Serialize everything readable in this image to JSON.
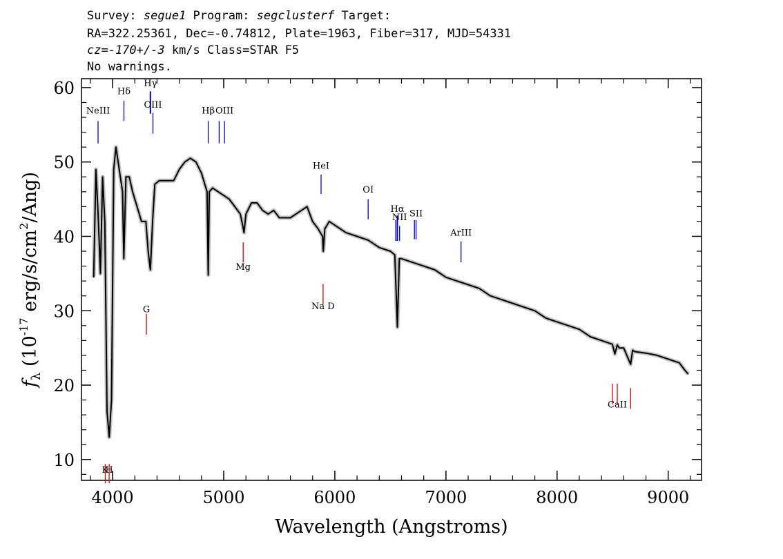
{
  "header": {
    "line1": [
      "Survey: ",
      "segue1",
      " Program: ",
      "segclusterf",
      " Target:"
    ],
    "line2": "RA=322.25361, Dec=-0.74812, Plate=1963, Fiber=317, MJD=54331",
    "line3": [
      "cz=-170+/-3",
      " km/s Class=STAR F5"
    ],
    "line4": "No warnings."
  },
  "chart_data": {
    "type": "line",
    "xlabel": "Wavelength (Angstroms)",
    "ylabel": {
      "f": "f",
      "sub": "λ",
      "pre": " (10",
      "sup": "-17",
      "mid": " erg/s/cm",
      "sup2": "2",
      "post": "/Ang)"
    },
    "xlim": [
      3720,
      9300
    ],
    "ylim": [
      7.2,
      61.2
    ],
    "xticks": [
      4000,
      5000,
      6000,
      7000,
      8000,
      9000
    ],
    "xtick_labels": [
      "4000",
      "5000",
      "6000",
      "7000",
      "8000",
      "9000"
    ],
    "yticks": [
      10,
      20,
      30,
      40,
      50,
      60
    ],
    "ytick_labels": [
      "10",
      "20",
      "30",
      "40",
      "50",
      "60"
    ],
    "colors": {
      "flux": "#000000",
      "error": "#bdbdbd",
      "emission": "#0000cc",
      "absorption": "#dd0000"
    },
    "spectrum": {
      "name": "flux",
      "x": [
        3830,
        3850,
        3870,
        3890,
        3910,
        3930,
        3950,
        3970,
        3990,
        4010,
        4030,
        4050,
        4070,
        4090,
        4101,
        4120,
        4150,
        4180,
        4220,
        4260,
        4300,
        4320,
        4340,
        4360,
        4380,
        4420,
        4480,
        4550,
        4600,
        4650,
        4700,
        4750,
        4800,
        4830,
        4850,
        4861,
        4870,
        4900,
        4950,
        5000,
        5050,
        5100,
        5150,
        5170,
        5183,
        5200,
        5250,
        5300,
        5350,
        5400,
        5450,
        5500,
        5600,
        5700,
        5750,
        5800,
        5850,
        5890,
        5896,
        5910,
        5950,
        6000,
        6100,
        6200,
        6300,
        6400,
        6500,
        6540,
        6563,
        6580,
        6600,
        6700,
        6800,
        6900,
        7000,
        7100,
        7200,
        7300,
        7400,
        7500,
        7600,
        7700,
        7800,
        7900,
        8000,
        8100,
        8200,
        8300,
        8400,
        8498,
        8520,
        8542,
        8560,
        8600,
        8662,
        8680,
        8700,
        8800,
        8900,
        9000,
        9100,
        9150,
        9180
      ],
      "y": [
        34.5,
        49,
        43,
        35,
        48,
        42,
        16.5,
        13,
        18,
        49,
        52,
        50,
        48,
        46,
        37,
        48,
        48,
        46,
        44,
        42,
        42,
        38,
        35.5,
        42,
        47,
        47.5,
        47.5,
        47.5,
        49,
        50,
        50.5,
        50,
        48.5,
        47,
        46,
        34.8,
        46,
        46.5,
        46,
        45.5,
        45,
        44,
        43,
        41.5,
        40.5,
        43,
        44.5,
        44.5,
        43.5,
        43,
        43.5,
        42.5,
        42.5,
        43.5,
        44,
        42,
        41,
        40,
        38,
        41,
        42,
        41.5,
        40.5,
        40,
        39.5,
        38.5,
        38,
        37.5,
        27.8,
        37,
        37,
        36.5,
        36,
        35.5,
        34.5,
        34,
        33.5,
        33,
        32,
        31.5,
        31,
        30.5,
        30,
        29,
        28.5,
        28,
        27.5,
        26.5,
        26,
        25.5,
        24.2,
        25.4,
        25,
        25,
        22.8,
        24.7,
        24.5,
        24.3,
        24,
        23.5,
        23,
        22,
        21.5
      ]
    },
    "lines": [
      {
        "label": "NeIII",
        "x": 3869,
        "kind": "emission",
        "y_bottom": 52.5,
        "y_top": 55.5,
        "label_y": 56.5
      },
      {
        "label": "Hδ",
        "x": 4102,
        "kind": "emission",
        "y_bottom": 55.5,
        "y_top": 58.2,
        "label_y": 59.1
      },
      {
        "label": "Hγ",
        "x": 4340,
        "kind": "emission",
        "y_bottom": 56.5,
        "y_top": 59.5,
        "label_y": 60.2
      },
      {
        "label": "OIII",
        "x": 4363,
        "kind": "emission",
        "y_bottom": 53.8,
        "y_top": 56.6,
        "label_y": 57.3
      },
      {
        "label": "Hβ",
        "x": 4861,
        "kind": "emission",
        "y_bottom": 52.5,
        "y_top": 55.5,
        "label_y": 56.5
      },
      {
        "label": "OIII",
        "x": 4959,
        "kind": "emission",
        "y_bottom": 52.5,
        "y_top": 55.5,
        "label_y": null
      },
      {
        "label": "OIII",
        "x": 5007,
        "kind": "emission",
        "y_bottom": 52.5,
        "y_top": 55.5,
        "label_y": 56.5
      },
      {
        "label": "HeI",
        "x": 5876,
        "kind": "emission",
        "y_bottom": 45.7,
        "y_top": 48.3,
        "label_y": 49.1
      },
      {
        "label": "OI",
        "x": 6300,
        "kind": "emission",
        "y_bottom": 42.3,
        "y_top": 45,
        "label_y": 45.9
      },
      {
        "label": "NII",
        "x": 6548,
        "kind": "emission",
        "y_bottom": 39.4,
        "y_top": 42.2,
        "label_y": null
      },
      {
        "label": "Hα",
        "x": 6563,
        "kind": "emission",
        "y_bottom": 39.4,
        "y_top": 42.8,
        "label_y": 43.3
      },
      {
        "label": "NII",
        "x": 6583,
        "kind": "emission",
        "y_bottom": 39.4,
        "y_top": 41.4,
        "label_y": 42.2
      },
      {
        "label": "SII",
        "x": 6716,
        "kind": "emission",
        "y_bottom": 39.6,
        "y_top": 42.2,
        "label_y": null
      },
      {
        "label": "SII",
        "x": 6731,
        "kind": "emission",
        "y_bottom": 39.6,
        "y_top": 42.2,
        "label_y": 42.7
      },
      {
        "label": "ArIII",
        "x": 7136,
        "kind": "emission",
        "y_bottom": 36.5,
        "y_top": 39.3,
        "label_y": 40.1
      },
      {
        "label": "K",
        "x": 3934,
        "kind": "absorption",
        "y_bottom": 6.8,
        "y_top": 9.4,
        "label_y": 8.2
      },
      {
        "label": "H",
        "x": 3969,
        "kind": "absorption",
        "y_bottom": 6.8,
        "y_top": 9.4,
        "label_y": 8.2
      },
      {
        "label": "G",
        "x": 4305,
        "kind": "absorption",
        "y_bottom": 26.8,
        "y_top": 29.6,
        "label_y": 29.8
      },
      {
        "label": "Mg",
        "x": 5175,
        "kind": "absorption",
        "y_bottom": 36.5,
        "y_top": 39.2,
        "label_y": 35.5
      },
      {
        "label": "Na D",
        "x": 5894,
        "kind": "absorption",
        "y_bottom": 30.8,
        "y_top": 33.6,
        "label_y": 30.2
      },
      {
        "label": "CaII",
        "x": 8498,
        "kind": "absorption",
        "y_bottom": 17.4,
        "y_top": 20.2,
        "label_y": null
      },
      {
        "label": "CaII",
        "x": 8542,
        "kind": "absorption",
        "y_bottom": 17.4,
        "y_top": 20.2,
        "label_y": 17.0
      },
      {
        "label": "CaII",
        "x": 8662,
        "kind": "absorption",
        "y_bottom": 16.8,
        "y_top": 19.6,
        "label_y": null
      }
    ]
  }
}
